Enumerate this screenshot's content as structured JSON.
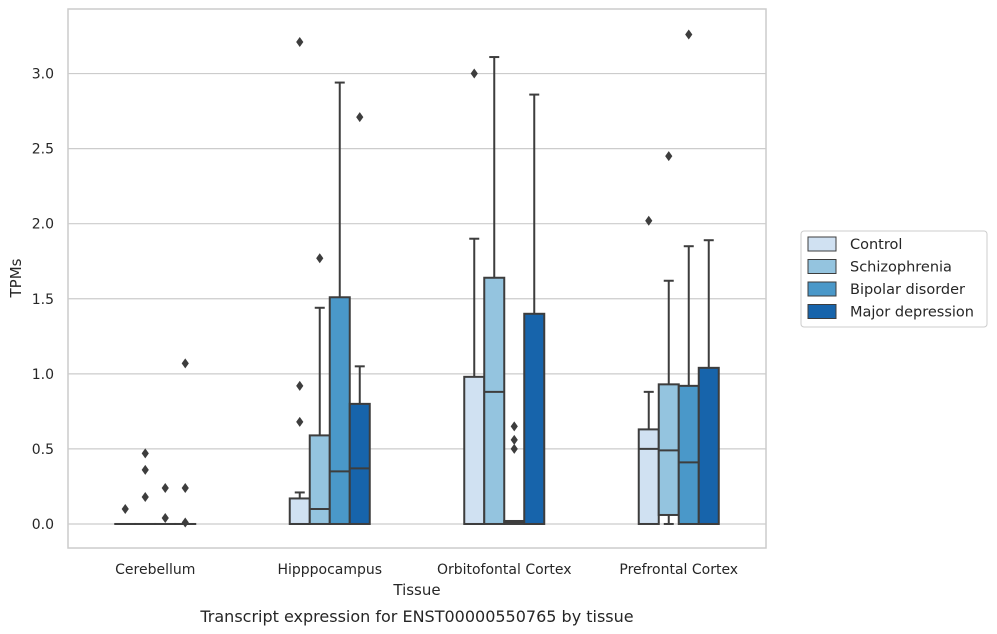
{
  "chart_data": {
    "type": "box",
    "caption": "Transcript expression for ENST00000550765 by tissue",
    "xlabel": "Tissue",
    "ylabel": "TPMs",
    "ylim": [
      -0.16,
      3.43
    ],
    "yticks": [
      0.0,
      0.5,
      1.0,
      1.5,
      2.0,
      2.5,
      3.0
    ],
    "ytick_labels": [
      "0.0",
      "0.5",
      "1.0",
      "1.5",
      "2.0",
      "2.5",
      "3.0"
    ],
    "grid": "horizontal",
    "legend_position": "right",
    "categories": [
      "Cerebellum",
      "Hipppocampus",
      "Orbitofontal Cortex",
      "Prefrontal Cortex"
    ],
    "series": [
      {
        "name": "Control",
        "color": "#d0e1f2",
        "boxes": [
          {
            "q1": 0.0,
            "median": 0.0,
            "q3": 0.0,
            "whisker_low": 0.0,
            "whisker_high": 0.0,
            "outliers": [
              0.1
            ]
          },
          {
            "q1": 0.0,
            "median": 0.0,
            "q3": 0.17,
            "whisker_low": 0.0,
            "whisker_high": 0.21,
            "outliers": [
              3.21,
              0.92,
              0.68
            ]
          },
          {
            "q1": 0.0,
            "median": 0.0,
            "q3": 0.98,
            "whisker_low": 0.0,
            "whisker_high": 1.9,
            "outliers": [
              3.0
            ]
          },
          {
            "q1": 0.0,
            "median": 0.5,
            "q3": 0.63,
            "whisker_low": 0.0,
            "whisker_high": 0.88,
            "outliers": [
              2.02
            ]
          }
        ]
      },
      {
        "name": "Schizophrenia",
        "color": "#94c4df",
        "boxes": [
          {
            "q1": 0.0,
            "median": 0.0,
            "q3": 0.0,
            "whisker_low": 0.0,
            "whisker_high": 0.0,
            "outliers": [
              0.47,
              0.36,
              0.18
            ]
          },
          {
            "q1": 0.0,
            "median": 0.1,
            "q3": 0.59,
            "whisker_low": 0.0,
            "whisker_high": 1.44,
            "outliers": [
              1.77
            ]
          },
          {
            "q1": 0.0,
            "median": 0.88,
            "q3": 1.64,
            "whisker_low": 0.0,
            "whisker_high": 3.11,
            "outliers": []
          },
          {
            "q1": 0.06,
            "median": 0.49,
            "q3": 0.93,
            "whisker_low": 0.0,
            "whisker_high": 1.62,
            "outliers": [
              2.45
            ]
          }
        ]
      },
      {
        "name": "Bipolar disorder",
        "color": "#4a98c9",
        "boxes": [
          {
            "q1": 0.0,
            "median": 0.0,
            "q3": 0.0,
            "whisker_low": 0.0,
            "whisker_high": 0.0,
            "outliers": [
              0.24,
              0.04
            ]
          },
          {
            "q1": 0.0,
            "median": 0.35,
            "q3": 1.51,
            "whisker_low": 0.0,
            "whisker_high": 2.94,
            "outliers": []
          },
          {
            "q1": 0.0,
            "median": 0.01,
            "q3": 0.02,
            "whisker_low": 0.0,
            "whisker_high": 0.02,
            "outliers": [
              0.65,
              0.56,
              0.5
            ]
          },
          {
            "q1": 0.0,
            "median": 0.41,
            "q3": 0.92,
            "whisker_low": 0.0,
            "whisker_high": 1.85,
            "outliers": [
              3.26
            ]
          }
        ]
      },
      {
        "name": "Major depression",
        "color": "#1764ab",
        "boxes": [
          {
            "q1": 0.0,
            "median": 0.0,
            "q3": 0.0,
            "whisker_low": 0.0,
            "whisker_high": 0.0,
            "outliers": [
              1.07,
              0.24,
              0.01
            ]
          },
          {
            "q1": 0.0,
            "median": 0.37,
            "q3": 0.8,
            "whisker_low": 0.0,
            "whisker_high": 1.05,
            "outliers": [
              2.71
            ]
          },
          {
            "q1": 0.0,
            "median": 0.0,
            "q3": 1.4,
            "whisker_low": 0.0,
            "whisker_high": 2.86,
            "outliers": []
          },
          {
            "q1": 0.0,
            "median": 0.0,
            "q3": 1.04,
            "whisker_low": 0.0,
            "whisker_high": 1.89,
            "outliers": []
          }
        ]
      }
    ]
  }
}
